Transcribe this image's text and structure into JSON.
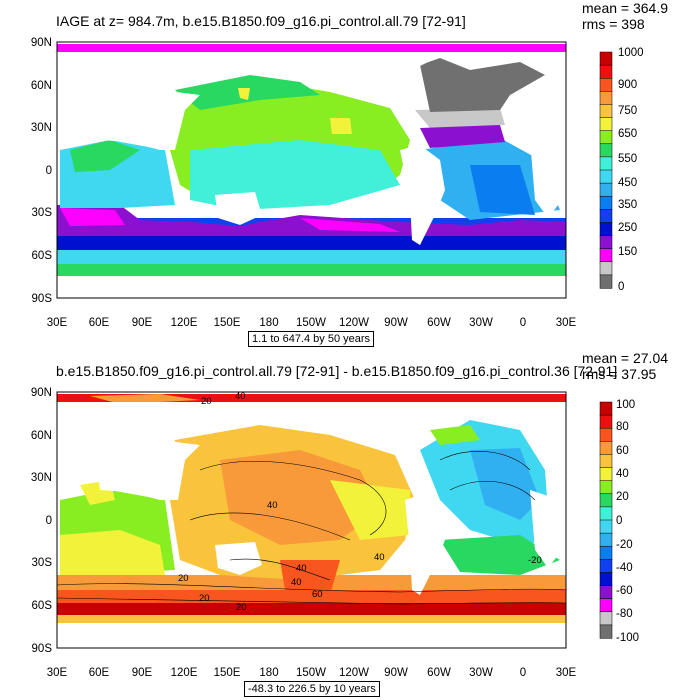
{
  "panels": [
    {
      "title": "IAGE at z= 984.7m, b.e15.B1850.f09_g16.pi_control.all.79 [72-91]",
      "stat_mean": "mean = 364.9",
      "stat_rms": "rms = 398",
      "range_text": "1.1 to 647.4 by 50 years",
      "colorbar_labels": [
        "1000",
        "900",
        "750",
        "650",
        "550",
        "450",
        "350",
        "250",
        "150",
        "0"
      ],
      "colorbar_colors": [
        "#c80000",
        "#ee1010",
        "#f8561e",
        "#f99a3a",
        "#f9c43c",
        "#f2f23a",
        "#88ee22",
        "#28d860",
        "#40f0d8",
        "#3fd8f0",
        "#30b0f0",
        "#0a7ef0",
        "#1040f0",
        "#0010d0",
        "#8c10d0",
        "#ff00ff",
        "#c8c8c8",
        "#707070"
      ],
      "field_name": "IAGE"
    },
    {
      "title": "b.e15.B1850.f09_g16.pi_control.all.79 [72-91] - b.e15.B1850.f09_g16.pi_control.36 [72-91]",
      "stat_mean": "mean = 27.04",
      "stat_rms": "rms = 37.95",
      "range_text": "-48.3 to 226.5 by 10 years",
      "colorbar_labels": [
        "100",
        "80",
        "60",
        "40",
        "20",
        "0",
        "-20",
        "-40",
        "-60",
        "-80",
        "-100"
      ],
      "colorbar_colors": [
        "#c80000",
        "#ee1010",
        "#f8561e",
        "#f99a3a",
        "#f9c43c",
        "#f2f23a",
        "#88ee22",
        "#28d860",
        "#40f0d8",
        "#3fd8f0",
        "#30b0f0",
        "#0a7ef0",
        "#1040f0",
        "#0010d0",
        "#8c10d0",
        "#ff00ff",
        "#c8c8c8",
        "#707070"
      ],
      "contour_labels": [
        "40",
        "40",
        "20",
        "60",
        "40",
        "40",
        "40",
        "20",
        "20",
        "20",
        "-20"
      ]
    }
  ],
  "lat_ticks": [
    "90N",
    "60N",
    "30N",
    "0",
    "30S",
    "60S",
    "90S"
  ],
  "lon_ticks": [
    "30E",
    "60E",
    "90E",
    "120E",
    "150E",
    "180",
    "150W",
    "120W",
    "90W",
    "60W",
    "30W",
    "0",
    "30E"
  ]
}
